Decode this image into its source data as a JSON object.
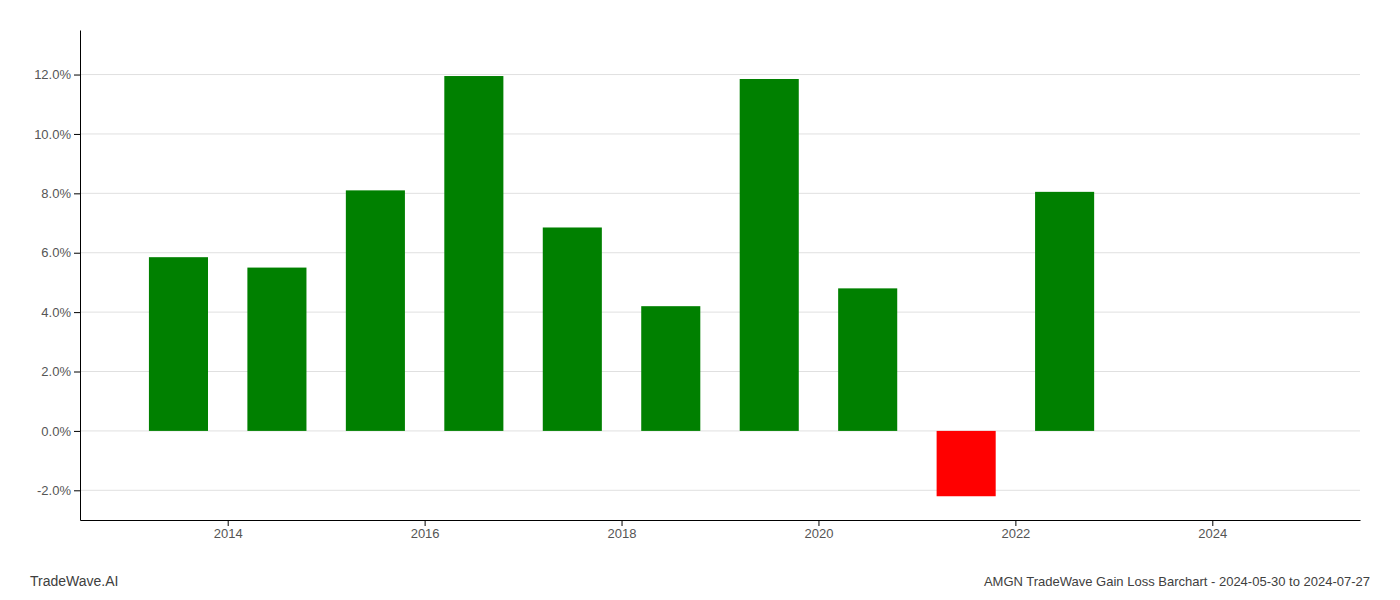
{
  "chart_data": {
    "type": "bar",
    "title": "AMGN TradeWave Gain Loss Barchart - 2024-05-30 to 2024-07-27",
    "annotations": [
      "TradeWave.AI"
    ],
    "x": [
      2013.5,
      2014.5,
      2015.5,
      2016.5,
      2017.5,
      2018.5,
      2019.5,
      2020.5,
      2021.5,
      2022.5
    ],
    "values": [
      0.0585,
      0.055,
      0.081,
      0.1195,
      0.0685,
      0.042,
      0.1185,
      0.048,
      -0.022,
      0.0805
    ],
    "colors": [
      "#008000",
      "#008000",
      "#008000",
      "#008000",
      "#008000",
      "#008000",
      "#008000",
      "#008000",
      "#ff0000",
      "#008000"
    ],
    "xlim": [
      2012.5,
      2025.5
    ],
    "xticks": [
      2014,
      2016,
      2018,
      2020,
      2022,
      2024
    ],
    "ylim": [
      -0.03,
      0.135
    ],
    "yticks": [
      {
        "value": -0.02,
        "label": "-2.0%"
      },
      {
        "value": 0.0,
        "label": "0.0%"
      },
      {
        "value": 0.02,
        "label": "2.0%"
      },
      {
        "value": 0.04,
        "label": "4.0%"
      },
      {
        "value": 0.06,
        "label": "6.0%"
      },
      {
        "value": 0.08,
        "label": "8.0%"
      },
      {
        "value": 0.1,
        "label": "10.0%"
      },
      {
        "value": 0.12,
        "label": "12.0%"
      }
    ],
    "grid": true
  }
}
